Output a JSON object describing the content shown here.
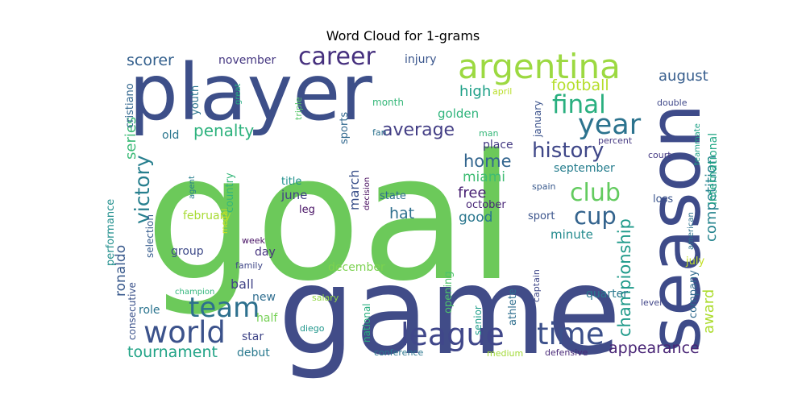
{
  "title": "Word Cloud for 1-grams",
  "chart_data": {
    "type": "wordcloud",
    "title": "Word Cloud for 1-grams",
    "words": [
      {
        "text": "goal",
        "color": "#6cc95a"
      },
      {
        "text": "game",
        "color": "#414c88"
      },
      {
        "text": "player",
        "color": "#3d4f89"
      },
      {
        "text": "season",
        "color": "#3e4b89"
      },
      {
        "text": "argentina",
        "color": "#9cd941"
      },
      {
        "text": "league",
        "color": "#40478a"
      },
      {
        "text": "world",
        "color": "#3b528b"
      },
      {
        "text": "time",
        "color": "#3c508b"
      },
      {
        "text": "team",
        "color": "#2d708e"
      },
      {
        "text": "career",
        "color": "#46307e"
      },
      {
        "text": "year",
        "color": "#2c738e"
      },
      {
        "text": "final",
        "color": "#29af7f"
      },
      {
        "text": "history",
        "color": "#3f4788"
      },
      {
        "text": "club",
        "color": "#63cb5f"
      },
      {
        "text": "cup",
        "color": "#33638d"
      },
      {
        "text": "victory",
        "color": "#277f8e"
      },
      {
        "text": "average",
        "color": "#433e85"
      },
      {
        "text": "penalty",
        "color": "#2db27d"
      },
      {
        "text": "tournament",
        "color": "#20a386"
      },
      {
        "text": "championship",
        "color": "#1f9a8a"
      },
      {
        "text": "appearance",
        "color": "#482475"
      },
      {
        "text": "home",
        "color": "#32658e"
      },
      {
        "text": "miami",
        "color": "#3fbc73"
      },
      {
        "text": "scorer",
        "color": "#34608d"
      },
      {
        "text": "football",
        "color": "#b5de2b"
      },
      {
        "text": "high",
        "color": "#1fa088"
      },
      {
        "text": "august",
        "color": "#365d8d"
      },
      {
        "text": "series",
        "color": "#3aba76"
      },
      {
        "text": "competition",
        "color": "#25848e"
      },
      {
        "text": "free",
        "color": "#482173"
      },
      {
        "text": "hat",
        "color": "#2e6f8e"
      },
      {
        "text": "good",
        "color": "#2a778e"
      },
      {
        "text": "golden",
        "color": "#2fb47c"
      },
      {
        "text": "ronaldo",
        "color": "#38598c"
      },
      {
        "text": "november",
        "color": "#453781"
      },
      {
        "text": "injury",
        "color": "#39558c"
      },
      {
        "text": "june",
        "color": "#424186"
      },
      {
        "text": "march",
        "color": "#3b518b"
      },
      {
        "text": "award",
        "color": "#addc30"
      },
      {
        "text": "ball",
        "color": "#414487"
      },
      {
        "text": "minute",
        "color": "#238a8d"
      },
      {
        "text": "quarter",
        "color": "#2a788e"
      },
      {
        "text": "february",
        "color": "#a8db34"
      },
      {
        "text": "place",
        "color": "#443a83"
      },
      {
        "text": "september",
        "color": "#277e8e"
      },
      {
        "text": "october",
        "color": "#482677"
      },
      {
        "text": "international",
        "color": "#22a785"
      },
      {
        "text": "country",
        "color": "#34b679"
      },
      {
        "text": "youth",
        "color": "#2b758e"
      },
      {
        "text": "cristiano",
        "color": "#31668e"
      },
      {
        "text": "old",
        "color": "#2a768e"
      },
      {
        "text": "sports",
        "color": "#31688e"
      },
      {
        "text": "sport",
        "color": "#3a538b"
      },
      {
        "text": "state",
        "color": "#2e6e8e"
      },
      {
        "text": "title",
        "color": "#21918c"
      },
      {
        "text": "leg",
        "color": "#471164"
      },
      {
        "text": "group",
        "color": "#3e4a89"
      },
      {
        "text": "day",
        "color": "#46337f"
      },
      {
        "text": "new",
        "color": "#2e6d8e"
      },
      {
        "text": "half",
        "color": "#75d054"
      },
      {
        "text": "role",
        "color": "#2b748e"
      },
      {
        "text": "star",
        "color": "#404688"
      },
      {
        "text": "debut",
        "color": "#29798e"
      },
      {
        "text": "december",
        "color": "#7cd250"
      },
      {
        "text": "opening",
        "color": "#4ec36b"
      },
      {
        "text": "senior",
        "color": "#1e9d89"
      },
      {
        "text": "athlete",
        "color": "#2e6e8e"
      },
      {
        "text": "national",
        "color": "#29af7f"
      },
      {
        "text": "company",
        "color": "#306a8e"
      },
      {
        "text": "july",
        "color": "#c2df23"
      },
      {
        "text": "loss",
        "color": "#3a548c"
      },
      {
        "text": "month",
        "color": "#35b779"
      },
      {
        "text": "january",
        "color": "#3b528b"
      },
      {
        "text": "april",
        "color": "#bade28"
      },
      {
        "text": "double",
        "color": "#3f4889"
      },
      {
        "text": "teammate",
        "color": "#1fa187"
      },
      {
        "text": "court",
        "color": "#443983"
      },
      {
        "text": "american",
        "color": "#2d718e"
      },
      {
        "text": "spain",
        "color": "#38598c"
      },
      {
        "text": "percent",
        "color": "#453882"
      },
      {
        "text": "man",
        "color": "#35b779"
      },
      {
        "text": "fan",
        "color": "#2c728e"
      },
      {
        "text": "decision",
        "color": "#460a5d"
      },
      {
        "text": "triple",
        "color": "#56c667"
      },
      {
        "text": "great",
        "color": "#25ac82"
      },
      {
        "text": "agent",
        "color": "#277f8e"
      },
      {
        "text": "selection",
        "color": "#365c8d"
      },
      {
        "text": "performance",
        "color": "#218f8d"
      },
      {
        "text": "consecutive",
        "color": "#3b528b"
      },
      {
        "text": "medal",
        "color": "#d2e21b"
      },
      {
        "text": "week",
        "color": "#471063"
      },
      {
        "text": "family",
        "color": "#3f4788"
      },
      {
        "text": "champion",
        "color": "#31b57b"
      },
      {
        "text": "salary",
        "color": "#90d743"
      },
      {
        "text": "diego",
        "color": "#1f968b"
      },
      {
        "text": "conference",
        "color": "#2a768e"
      },
      {
        "text": "medium",
        "color": "#a2da37"
      },
      {
        "text": "defensive",
        "color": "#482878"
      },
      {
        "text": "captain",
        "color": "#3f4788"
      },
      {
        "text": "level",
        "color": "#404588"
      }
    ]
  }
}
